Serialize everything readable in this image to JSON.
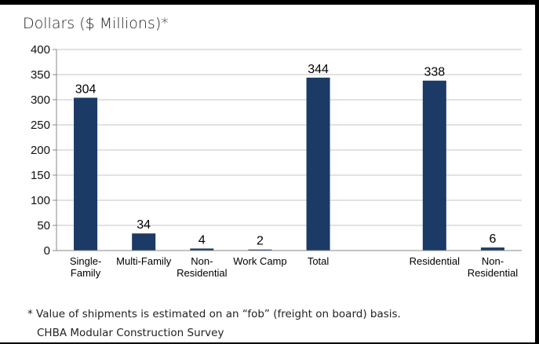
{
  "chart_data": {
    "type": "bar",
    "title": "",
    "ylabel": "Dollars ($ Millions)*",
    "xlabel": "",
    "ylim": [
      0,
      400
    ],
    "yticks": [
      0,
      50,
      100,
      150,
      200,
      250,
      300,
      350,
      400
    ],
    "grid": true,
    "categories": [
      {
        "label": [
          "Single-",
          "Family"
        ],
        "value": 304
      },
      {
        "label": [
          "Multi-Family"
        ],
        "value": 34
      },
      {
        "label": [
          "Non-",
          "Residential"
        ],
        "value": 4
      },
      {
        "label": [
          "Work Camp"
        ],
        "value": 2
      },
      {
        "label": [
          "Total"
        ],
        "value": 344
      },
      {
        "label": [],
        "value": null
      },
      {
        "label": [
          "Residential"
        ],
        "value": 338
      },
      {
        "label": [
          "Non-",
          "Residential"
        ],
        "value": 6
      }
    ],
    "data_labels": [
      "304",
      "34",
      "4",
      "2",
      "344",
      "",
      "338",
      "6"
    ],
    "bar_color": "#1b3a66"
  },
  "footnote": "* Value of shipments is estimated on an “fob” (freight on board) basis.",
  "source": "CHBA Modular Construction Survey"
}
